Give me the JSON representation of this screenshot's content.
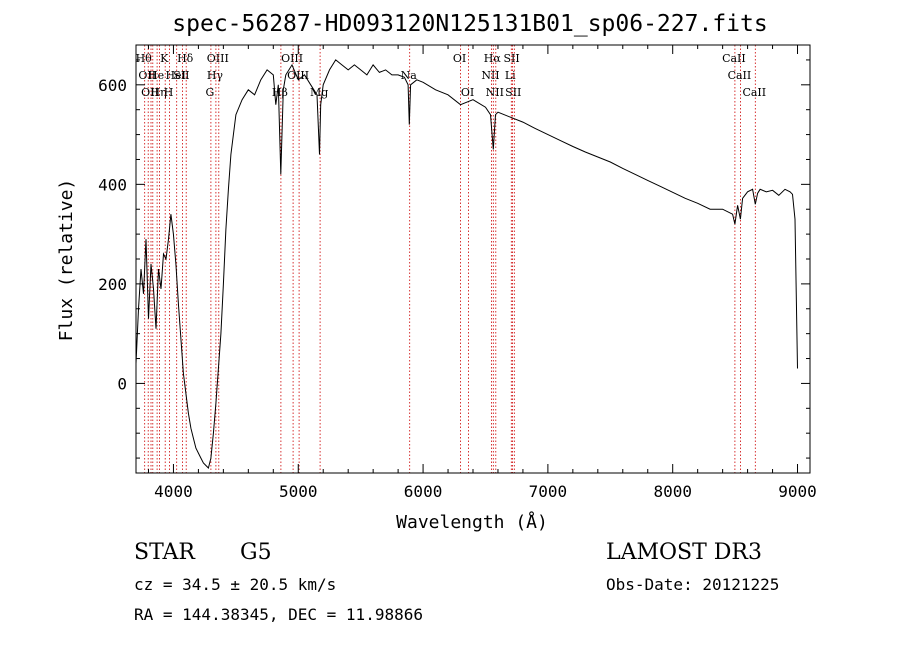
{
  "chart_data": {
    "type": "line",
    "title": "spec-56287-HD093120N125131B01_sp06-227.fits",
    "xlabel": "Wavelength (Å)",
    "ylabel": "Flux (relative)",
    "xlim": [
      3700,
      9100
    ],
    "ylim": [
      -180,
      680
    ],
    "x_ticks": [
      4000,
      5000,
      6000,
      7000,
      8000,
      9000
    ],
    "x_tick_labels": [
      "4000",
      "5000",
      "6000",
      "7000",
      "8000",
      "9000"
    ],
    "y_ticks": [
      0,
      200,
      400,
      600
    ],
    "y_tick_labels": [
      "0",
      "200",
      "400",
      "600"
    ],
    "grid": false,
    "series": [
      {
        "name": "flux",
        "x": [
          3700,
          3720,
          3740,
          3760,
          3780,
          3800,
          3820,
          3840,
          3860,
          3880,
          3900,
          3920,
          3940,
          3960,
          3980,
          4000,
          4020,
          4040,
          4060,
          4080,
          4100,
          4120,
          4140,
          4160,
          4180,
          4200,
          4220,
          4240,
          4260,
          4280,
          4300,
          4320,
          4340,
          4360,
          4380,
          4400,
          4420,
          4440,
          4460,
          4480,
          4500,
          4550,
          4600,
          4650,
          4700,
          4750,
          4800,
          4820,
          4840,
          4860,
          4880,
          4900,
          4950,
          5000,
          5050,
          5100,
          5150,
          5170,
          5180,
          5200,
          5250,
          5300,
          5350,
          5400,
          5450,
          5500,
          5550,
          5600,
          5650,
          5700,
          5750,
          5800,
          5850,
          5880,
          5890,
          5900,
          5950,
          6000,
          6100,
          6200,
          6300,
          6400,
          6500,
          6540,
          6563,
          6580,
          6600,
          6700,
          6800,
          6900,
          7000,
          7100,
          7200,
          7300,
          7400,
          7500,
          7600,
          7700,
          7800,
          7900,
          8000,
          8100,
          8200,
          8300,
          8400,
          8480,
          8498,
          8520,
          8542,
          8560,
          8600,
          8640,
          8662,
          8680,
          8700,
          8750,
          8800,
          8850,
          8900,
          8940,
          8960,
          8980,
          9000
        ],
        "y": [
          40,
          150,
          230,
          180,
          290,
          130,
          240,
          190,
          110,
          230,
          190,
          260,
          250,
          290,
          340,
          300,
          240,
          160,
          90,
          20,
          -20,
          -60,
          -90,
          -110,
          -130,
          -140,
          -150,
          -160,
          -165,
          -170,
          -150,
          -100,
          -40,
          30,
          100,
          200,
          310,
          390,
          460,
          500,
          540,
          570,
          590,
          580,
          610,
          630,
          620,
          560,
          600,
          420,
          590,
          620,
          640,
          610,
          620,
          600,
          580,
          460,
          560,
          600,
          630,
          650,
          640,
          630,
          640,
          630,
          620,
          640,
          625,
          630,
          620,
          620,
          615,
          600,
          520,
          600,
          610,
          605,
          590,
          580,
          560,
          570,
          555,
          540,
          470,
          540,
          545,
          535,
          525,
          512,
          500,
          488,
          476,
          465,
          455,
          445,
          432,
          420,
          408,
          396,
          384,
          372,
          362,
          350,
          350,
          340,
          320,
          358,
          330,
          372,
          385,
          390,
          360,
          382,
          390,
          385,
          388,
          378,
          390,
          385,
          380,
          330,
          30
        ]
      }
    ],
    "line_markers": [
      {
        "wavelength": 3770,
        "label": "Hθ",
        "row": 1
      },
      {
        "wavelength": 3798,
        "label": "OII",
        "row": 2
      },
      {
        "wavelength": 3820,
        "label": "OII",
        "row": 3
      },
      {
        "wavelength": 3835,
        "label": "",
        "row": 0
      },
      {
        "wavelength": 3869,
        "label": "He",
        "row": 2
      },
      {
        "wavelength": 3889,
        "label": "Hη",
        "row": 3
      },
      {
        "wavelength": 3934,
        "label": "K",
        "row": 1
      },
      {
        "wavelength": 3969,
        "label": "H",
        "row": 3
      },
      {
        "wavelength": 4026,
        "label": "HeI",
        "row": 2
      },
      {
        "wavelength": 4072,
        "label": "SII",
        "row": 2
      },
      {
        "wavelength": 4102,
        "label": "Hδ",
        "row": 1
      },
      {
        "wavelength": 4300,
        "label": "G",
        "row": 3
      },
      {
        "wavelength": 4340,
        "label": "Hγ",
        "row": 2
      },
      {
        "wavelength": 4363,
        "label": "OIII",
        "row": 1
      },
      {
        "wavelength": 4861,
        "label": "Hβ",
        "row": 3
      },
      {
        "wavelength": 4959,
        "label": "OIII",
        "row": 1
      },
      {
        "wavelength": 5007,
        "label": "OIII",
        "row": 2
      },
      {
        "wavelength": 5175,
        "label": "Mg",
        "row": 3
      },
      {
        "wavelength": 5893,
        "label": "Na",
        "row": 2
      },
      {
        "wavelength": 6300,
        "label": "OI",
        "row": 1
      },
      {
        "wavelength": 6364,
        "label": "OI",
        "row": 3
      },
      {
        "wavelength": 6548,
        "label": "NII",
        "row": 2
      },
      {
        "wavelength": 6563,
        "label": "Hα",
        "row": 1
      },
      {
        "wavelength": 6583,
        "label": "NII",
        "row": 3
      },
      {
        "wavelength": 6707,
        "label": "Li",
        "row": 2
      },
      {
        "wavelength": 6717,
        "label": "SII",
        "row": 1
      },
      {
        "wavelength": 6731,
        "label": "SII",
        "row": 3
      },
      {
        "wavelength": 8498,
        "label": "CaII",
        "row": 1
      },
      {
        "wavelength": 8542,
        "label": "CaII",
        "row": 2
      },
      {
        "wavelength": 8662,
        "label": "CaII",
        "row": 3
      }
    ],
    "marker_color": "#cc0000"
  },
  "info": {
    "object_class": "STAR",
    "subclass": "G5",
    "survey": "LAMOST DR3",
    "redshift_text": "cz = 34.5 ± 20.5 km/s",
    "obs_date_text": "Obs-Date: 20121225",
    "coords_text": "RA = 144.38345, DEC =  11.98866"
  },
  "colors": {
    "line": "#000000",
    "axis": "#000000",
    "marker": "#cc0000",
    "background": "#ffffff"
  }
}
